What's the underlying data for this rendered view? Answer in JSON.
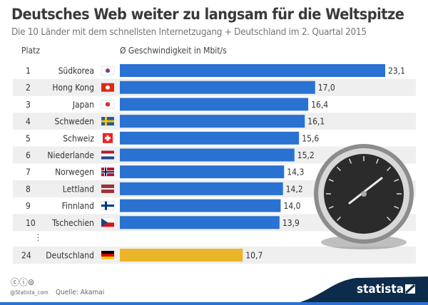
{
  "title": "Deutsches Web weiter zu langsam für die Weltspitze",
  "subtitle": "Die 10 Länder mit dem schnellsten Internetzugang + Deutschland im 2. Quartal 2015",
  "headers": {
    "rank": "Platz",
    "value": "Ø Geschwindigkeit in Mbit/s"
  },
  "ellipsis": "⋮",
  "footer": {
    "handle": "@Statista_com",
    "source": "Quelle: Akamai",
    "brand": "statista"
  },
  "colors": {
    "bar": "#2a72d2",
    "highlight": "#ebb52a",
    "row_alt": "#efefef",
    "brand_dark": "#0d2b4a"
  },
  "chart_data": {
    "type": "bar",
    "orientation": "horizontal",
    "ranks": [
      "1",
      "2",
      "3",
      "4",
      "5",
      "6",
      "7",
      "8",
      "9",
      "10",
      "24"
    ],
    "categories": [
      "Südkorea",
      "Hong Kong",
      "Japan",
      "Schweden",
      "Schweiz",
      "Niederlande",
      "Norwegen",
      "Lettland",
      "Finnland",
      "Tschechien",
      "Deutschland"
    ],
    "values": [
      23.1,
      17.0,
      16.4,
      16.1,
      15.6,
      15.2,
      14.3,
      14.2,
      14.0,
      13.9,
      10.7
    ],
    "labels": [
      "23,1",
      "17,0",
      "16,4",
      "16,1",
      "15,6",
      "15,2",
      "14,3",
      "14,2",
      "14,0",
      "13,9",
      "10,7"
    ],
    "flags": [
      "kr",
      "hk",
      "jp",
      "se",
      "ch",
      "nl",
      "no",
      "lv",
      "fi",
      "cz",
      "de"
    ],
    "highlight": "Deutschland",
    "ylabel": "Ø Geschwindigkeit in Mbit/s",
    "xlim": [
      0,
      23.1
    ]
  }
}
